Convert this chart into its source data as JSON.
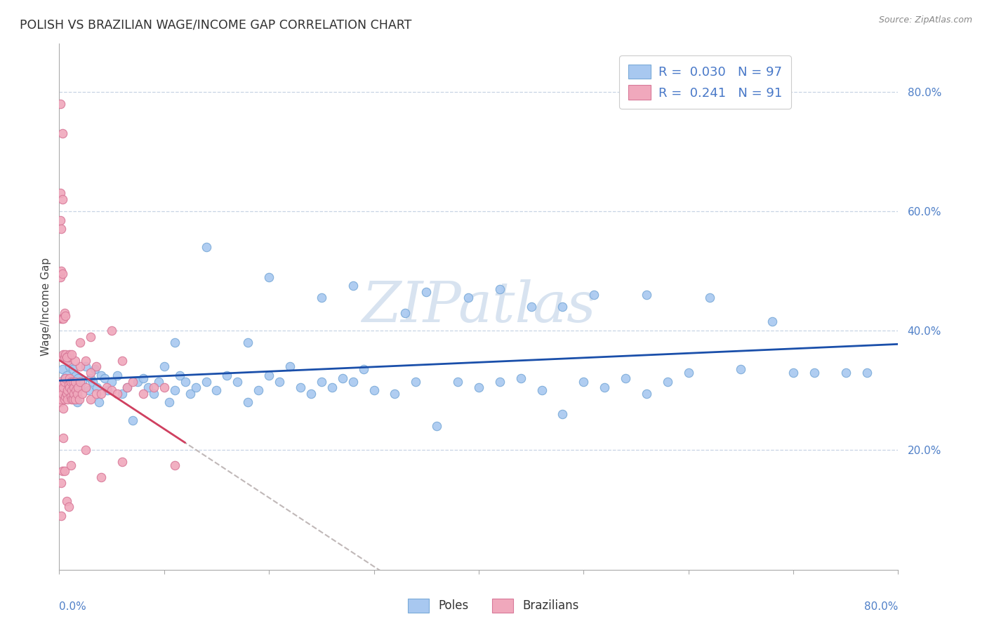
{
  "title": "POLISH VS BRAZILIAN WAGE/INCOME GAP CORRELATION CHART",
  "source": "Source: ZipAtlas.com",
  "ylabel": "Wage/Income Gap",
  "y_tick_values": [
    0.2,
    0.4,
    0.6,
    0.8
  ],
  "xmin": 0.0,
  "xmax": 0.8,
  "ymin": 0.0,
  "ymax": 0.88,
  "poles_color": "#a8c8f0",
  "poles_edge_color": "#7aaad8",
  "brazilians_color": "#f0a8bc",
  "brazilians_edge_color": "#d87898",
  "poles_R": 0.03,
  "poles_N": 97,
  "brazilians_R": 0.241,
  "brazilians_N": 91,
  "watermark": "ZIPatlas",
  "watermark_color": "#c8d8ea",
  "title_color": "#303030",
  "axis_label_color": "#5080c8",
  "legend_text_color_R": "#4878c8",
  "legend_text_color_N": "#202020",
  "trendline_poles_color": "#1a4faa",
  "trendline_brazilians_color": "#d04060",
  "trendline_brazilians_dash_color": "#c0b8b8",
  "grid_color": "#c8d4e4",
  "poles_data_x": [
    0.003,
    0.005,
    0.006,
    0.007,
    0.008,
    0.009,
    0.01,
    0.011,
    0.012,
    0.013,
    0.014,
    0.015,
    0.016,
    0.017,
    0.018,
    0.02,
    0.022,
    0.025,
    0.028,
    0.03,
    0.032,
    0.034,
    0.036,
    0.038,
    0.04,
    0.043,
    0.046,
    0.05,
    0.055,
    0.06,
    0.065,
    0.07,
    0.075,
    0.08,
    0.085,
    0.09,
    0.095,
    0.1,
    0.105,
    0.11,
    0.115,
    0.12,
    0.125,
    0.13,
    0.14,
    0.15,
    0.16,
    0.17,
    0.18,
    0.19,
    0.2,
    0.21,
    0.22,
    0.23,
    0.24,
    0.25,
    0.26,
    0.27,
    0.28,
    0.29,
    0.3,
    0.32,
    0.34,
    0.36,
    0.38,
    0.4,
    0.42,
    0.44,
    0.46,
    0.48,
    0.5,
    0.52,
    0.54,
    0.56,
    0.58,
    0.6,
    0.65,
    0.7,
    0.11,
    0.18,
    0.25,
    0.33,
    0.39,
    0.45,
    0.51,
    0.14,
    0.2,
    0.28,
    0.35,
    0.42,
    0.48,
    0.56,
    0.62,
    0.68,
    0.72,
    0.75,
    0.77
  ],
  "poles_data_y": [
    0.335,
    0.32,
    0.31,
    0.325,
    0.3,
    0.315,
    0.34,
    0.29,
    0.31,
    0.335,
    0.3,
    0.315,
    0.325,
    0.28,
    0.32,
    0.305,
    0.315,
    0.34,
    0.3,
    0.32,
    0.315,
    0.335,
    0.305,
    0.28,
    0.325,
    0.32,
    0.3,
    0.315,
    0.325,
    0.295,
    0.305,
    0.25,
    0.315,
    0.32,
    0.305,
    0.295,
    0.315,
    0.34,
    0.28,
    0.3,
    0.325,
    0.315,
    0.295,
    0.305,
    0.315,
    0.3,
    0.325,
    0.315,
    0.28,
    0.3,
    0.325,
    0.315,
    0.34,
    0.305,
    0.295,
    0.315,
    0.305,
    0.32,
    0.315,
    0.335,
    0.3,
    0.295,
    0.315,
    0.24,
    0.315,
    0.305,
    0.315,
    0.32,
    0.3,
    0.26,
    0.315,
    0.305,
    0.32,
    0.295,
    0.315,
    0.33,
    0.335,
    0.33,
    0.38,
    0.38,
    0.455,
    0.43,
    0.455,
    0.44,
    0.46,
    0.54,
    0.49,
    0.475,
    0.465,
    0.47,
    0.44,
    0.46,
    0.455,
    0.415,
    0.33,
    0.33,
    0.33
  ],
  "brazilians_data_x": [
    0.001,
    0.001,
    0.001,
    0.001,
    0.001,
    0.001,
    0.002,
    0.002,
    0.002,
    0.002,
    0.002,
    0.002,
    0.003,
    0.003,
    0.003,
    0.003,
    0.003,
    0.003,
    0.004,
    0.004,
    0.004,
    0.004,
    0.004,
    0.005,
    0.005,
    0.005,
    0.005,
    0.005,
    0.006,
    0.006,
    0.006,
    0.006,
    0.007,
    0.007,
    0.007,
    0.007,
    0.008,
    0.008,
    0.008,
    0.009,
    0.009,
    0.009,
    0.01,
    0.01,
    0.01,
    0.011,
    0.011,
    0.011,
    0.012,
    0.012,
    0.013,
    0.013,
    0.014,
    0.014,
    0.015,
    0.015,
    0.016,
    0.017,
    0.018,
    0.019,
    0.02,
    0.02,
    0.022,
    0.025,
    0.025,
    0.03,
    0.03,
    0.035,
    0.04,
    0.04,
    0.045,
    0.05,
    0.055,
    0.06,
    0.065,
    0.07,
    0.08,
    0.09,
    0.1,
    0.11,
    0.02,
    0.035,
    0.06,
    0.03,
    0.015,
    0.025,
    0.05,
    0.003,
    0.007,
    0.012,
    0.002
  ],
  "brazilians_data_y": [
    0.315,
    0.28,
    0.49,
    0.585,
    0.63,
    0.78,
    0.285,
    0.3,
    0.42,
    0.5,
    0.57,
    0.145,
    0.295,
    0.355,
    0.42,
    0.495,
    0.62,
    0.165,
    0.27,
    0.305,
    0.36,
    0.42,
    0.22,
    0.315,
    0.355,
    0.43,
    0.285,
    0.165,
    0.29,
    0.32,
    0.36,
    0.425,
    0.295,
    0.355,
    0.295,
    0.115,
    0.3,
    0.35,
    0.285,
    0.31,
    0.355,
    0.105,
    0.32,
    0.305,
    0.36,
    0.29,
    0.315,
    0.175,
    0.3,
    0.285,
    0.285,
    0.315,
    0.305,
    0.295,
    0.315,
    0.285,
    0.3,
    0.295,
    0.305,
    0.285,
    0.315,
    0.38,
    0.295,
    0.305,
    0.2,
    0.285,
    0.39,
    0.295,
    0.295,
    0.155,
    0.305,
    0.3,
    0.295,
    0.18,
    0.305,
    0.315,
    0.295,
    0.305,
    0.305,
    0.175,
    0.34,
    0.34,
    0.35,
    0.33,
    0.35,
    0.35,
    0.4,
    0.73,
    0.355,
    0.36,
    0.09
  ]
}
